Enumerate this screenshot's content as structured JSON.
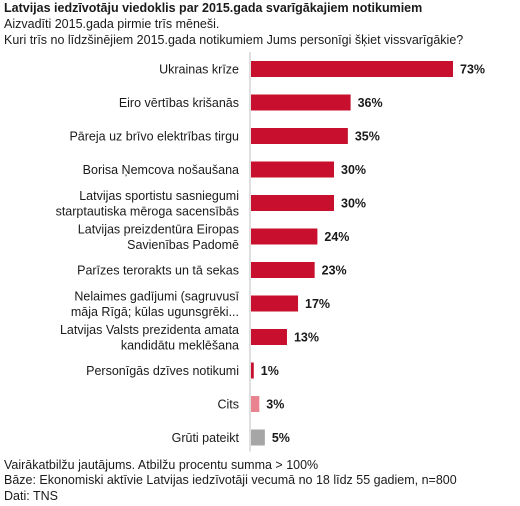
{
  "header": {
    "title": "Latvijas iedzīvotāju viedoklis par 2015.gada svarīgākajiem notikumiem",
    "subtitle1": "Aizvadīti 2015.gada pirmie trīs mēneši.",
    "subtitle2": "Kuri trīs no līdzšinējiem 2015.gada notikumiem Jums personīgi šķiet vissvarīgākie?"
  },
  "footer": {
    "note1": "Vairākatbilžu jautājums. Atbilžu procentu summa > 100%",
    "note2": "Bāze: Ekonomiski aktīvie Latvijas iedzīvotāji vecumā no 18 līdz 55 gadiem, n=800",
    "note3": "Dati: TNS"
  },
  "chart_data": {
    "type": "bar",
    "orientation": "horizontal",
    "categories": [
      [
        "Ukrainas krīze"
      ],
      [
        "Eiro vērtības krišanās"
      ],
      [
        "Pāreja uz brīvo elektrības tirgu"
      ],
      [
        "Borisa Ņemcova nošaušana"
      ],
      [
        "Latvijas sportistu sasniegumi",
        "starptautiska mēroga sacensībās"
      ],
      [
        "Latvijas preizdentūra Eiropas",
        "Savienības Padomē"
      ],
      [
        "Parīzes terorakts un tā sekas"
      ],
      [
        "Nelaimes gadījumi (sagruvusī",
        "māja Rīgā; kūlas ugunsgrēki..."
      ],
      [
        "Latvijas Valsts prezidenta amata",
        "kandidātu meklēšana"
      ],
      [
        "Personīgās dzīves notikumi"
      ],
      [
        "Cits"
      ],
      [
        "Grūti pateikt"
      ]
    ],
    "values": [
      73,
      36,
      35,
      30,
      30,
      24,
      23,
      17,
      13,
      1,
      3,
      5
    ],
    "value_labels": [
      "73%",
      "36%",
      "35%",
      "30%",
      "30%",
      "24%",
      "23%",
      "17%",
      "13%",
      "1%",
      "3%",
      "5%"
    ],
    "colors": [
      "#c8102e",
      "#c8102e",
      "#c8102e",
      "#c8102e",
      "#c8102e",
      "#c8102e",
      "#c8102e",
      "#c8102e",
      "#c8102e",
      "#c8102e",
      "#e8838f",
      "#a6a6a6"
    ],
    "xlim": [
      0,
      73
    ]
  }
}
